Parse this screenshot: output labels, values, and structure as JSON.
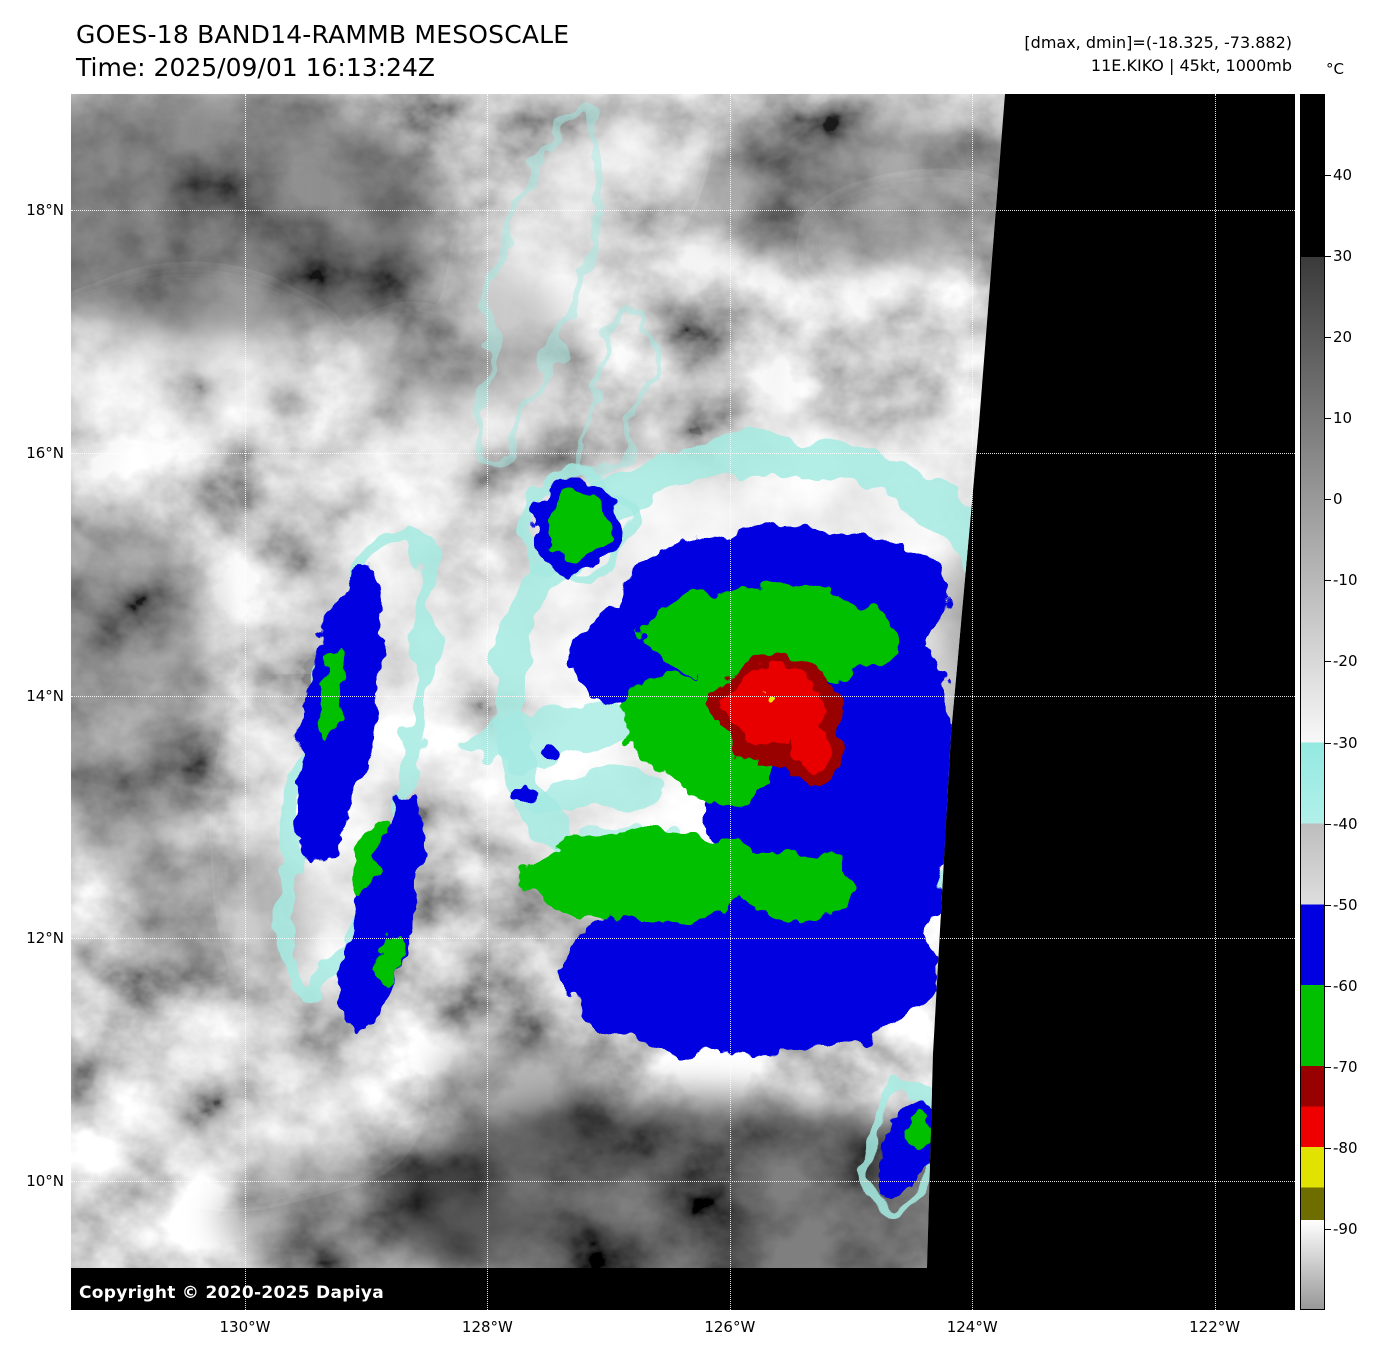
{
  "header": {
    "title": "GOES-18 BAND14-RAMMB MESOSCALE",
    "time": "Time: 2025/09/01 16:13:24Z"
  },
  "annotations": {
    "dmax_dmin": "[dmax, dmin]=(-18.325, -73.882)",
    "storm": "11E.KIKO | 45kt, 1000mb"
  },
  "copyright": "Copyright © 2020-2025 Dapiya",
  "colorbar": {
    "unit_label": "°C",
    "range_top_c": 50,
    "range_bottom_c": -100,
    "ticks": [
      {
        "label": "40",
        "value": 40
      },
      {
        "label": "30",
        "value": 30
      },
      {
        "label": "20",
        "value": 20
      },
      {
        "label": "10",
        "value": 10
      },
      {
        "label": "0",
        "value": 0
      },
      {
        "label": "-10",
        "value": -10
      },
      {
        "label": "-20",
        "value": -20
      },
      {
        "label": "-30",
        "value": -30
      },
      {
        "label": "-40",
        "value": -40
      },
      {
        "label": "-50",
        "value": -50
      },
      {
        "label": "-60",
        "value": -60
      },
      {
        "label": "-70",
        "value": -70
      },
      {
        "label": "-80",
        "value": -80
      },
      {
        "label": "-90",
        "value": -90
      }
    ],
    "segments": [
      {
        "from": 50,
        "to": 30,
        "start": "#000000",
        "end": "#000000"
      },
      {
        "from": 30,
        "to": -30,
        "start": "#3a3a3a",
        "end": "#f8f8f8"
      },
      {
        "from": -30,
        "to": -40,
        "start": "#93e9e1",
        "end": "#b2f0ea"
      },
      {
        "from": -40,
        "to": -50,
        "start": "#bdbdbd",
        "end": "#dedede"
      },
      {
        "from": -50,
        "to": -60,
        "start": "#0000e0",
        "end": "#0000e0"
      },
      {
        "from": -60,
        "to": -70,
        "start": "#00c000",
        "end": "#00c000"
      },
      {
        "from": -70,
        "to": -75,
        "start": "#990000",
        "end": "#990000"
      },
      {
        "from": -75,
        "to": -80,
        "start": "#ee0000",
        "end": "#ee0000"
      },
      {
        "from": -80,
        "to": -85,
        "start": "#e2e200",
        "end": "#e2e200"
      },
      {
        "from": -85,
        "to": -89,
        "start": "#6e6e00",
        "end": "#6e6e00"
      },
      {
        "from": -89,
        "to": -100,
        "start": "#ffffff",
        "end": "#989898"
      }
    ]
  },
  "axes": {
    "lat_ticks": [
      {
        "label": "18°N",
        "value": 18
      },
      {
        "label": "16°N",
        "value": 16
      },
      {
        "label": "14°N",
        "value": 14
      },
      {
        "label": "12°N",
        "value": 12
      },
      {
        "label": "10°N",
        "value": 10
      }
    ],
    "lon_ticks": [
      {
        "label": "130°W",
        "value": 130
      },
      {
        "label": "128°W",
        "value": 128
      },
      {
        "label": "126°W",
        "value": 126
      },
      {
        "label": "124°W",
        "value": 124
      },
      {
        "label": "122°W",
        "value": 122
      }
    ]
  },
  "palette": {
    "cyan": "#a4eae2",
    "blue": "#0000e0",
    "green": "#00c000",
    "dark_red": "#990000",
    "red": "#e80000",
    "yellow": "#e8e800"
  }
}
